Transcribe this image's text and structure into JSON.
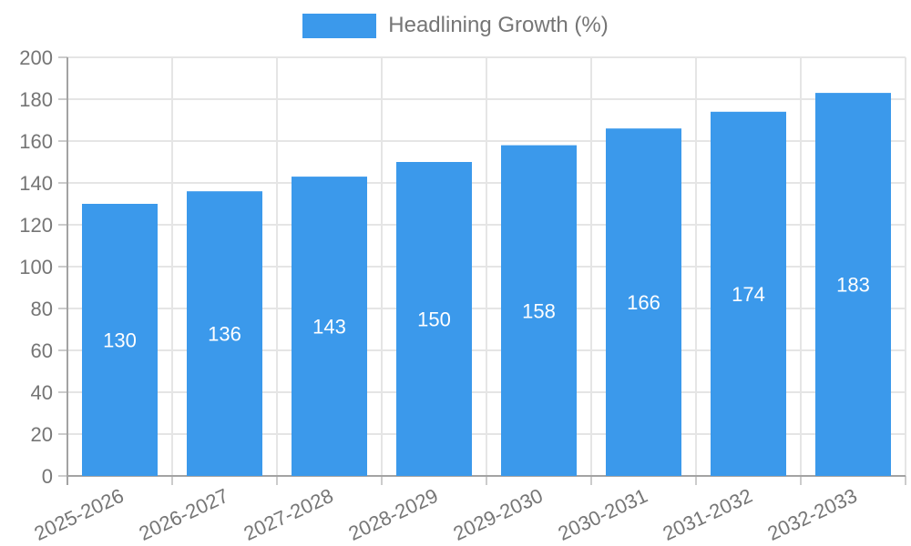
{
  "legend": {
    "label": "Headlining Growth (%)"
  },
  "chart_data": {
    "type": "bar",
    "title": "Headlining Growth (%)",
    "categories": [
      "2025-2026",
      "2026-2027",
      "2027-2028",
      "2028-2029",
      "2029-2030",
      "2030-2031",
      "2031-2032",
      "2032-2033"
    ],
    "series": [
      {
        "name": "Headlining Growth (%)",
        "values": [
          130,
          136,
          143,
          150,
          158,
          166,
          174,
          183
        ]
      }
    ],
    "xlabel": "",
    "ylabel": "",
    "ylim": [
      0,
      200
    ],
    "ytick_step": 20,
    "grid": true,
    "legend_position": "top",
    "bar_labels_inside": true,
    "colors": {
      "bar": "#3B99EB",
      "bar_label": "#ffffff",
      "axis_text": "#757575",
      "gridline": "#e5e5e5",
      "axis_line": "#a3a3a3",
      "tick": "#cccccc"
    }
  }
}
